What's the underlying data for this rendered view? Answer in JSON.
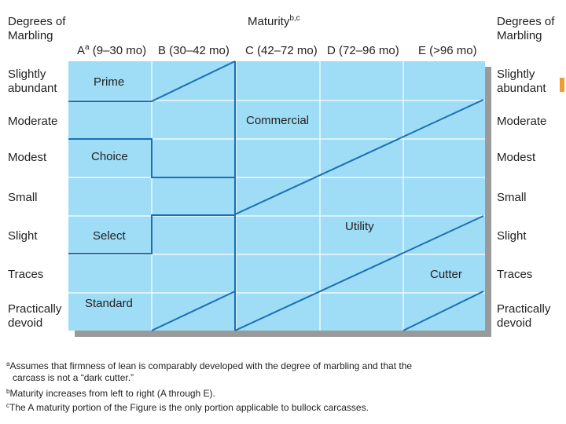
{
  "header": {
    "left_title_1": "Degrees of",
    "left_title_2": "Marbling",
    "right_title_1": "Degrees of",
    "right_title_2": "Marbling",
    "maturity_label": "Maturity",
    "maturity_sup": "b,c"
  },
  "columns": {
    "a_prefix": "A",
    "a_sup": "a",
    "a_rest": " (9–30 mo)",
    "b": "B (30–42 mo)",
    "c": "C (42–72 mo)",
    "d": "D (72–96 mo)",
    "e": "E (>96 mo)"
  },
  "rows": {
    "r1_1": "Slightly",
    "r1_2": "abundant",
    "r2": "Moderate",
    "r3": "Modest",
    "r4": "Small",
    "r5": "Slight",
    "r6": "Traces",
    "r7_1": "Practically",
    "r7_2": "devoid"
  },
  "grades": {
    "prime": "Prime",
    "choice": "Choice",
    "select": "Select",
    "standard": "Standard",
    "commercial": "Commercial",
    "utility": "Utility",
    "cutter": "Cutter"
  },
  "footnotes": {
    "a_sup": "a",
    "a_line1": "Assumes that firmness of lean is comparably developed with the degree of marbling and that the",
    "a_line2": "carcass is not a “dark cutter.”",
    "b_sup": "b",
    "b_line": "Maturity increases from left to right (A through E).",
    "c_sup": "c",
    "c_line": "The A maturity portion of the Figure is the only portion applicable to bullock carcasses."
  },
  "colors": {
    "grid_fill": "#9fdcf6",
    "grid_lines": "#ffffff",
    "boundary_lines": "#1b6fb5",
    "shadow": "#9a9a9a",
    "accent": "#f29a33"
  }
}
